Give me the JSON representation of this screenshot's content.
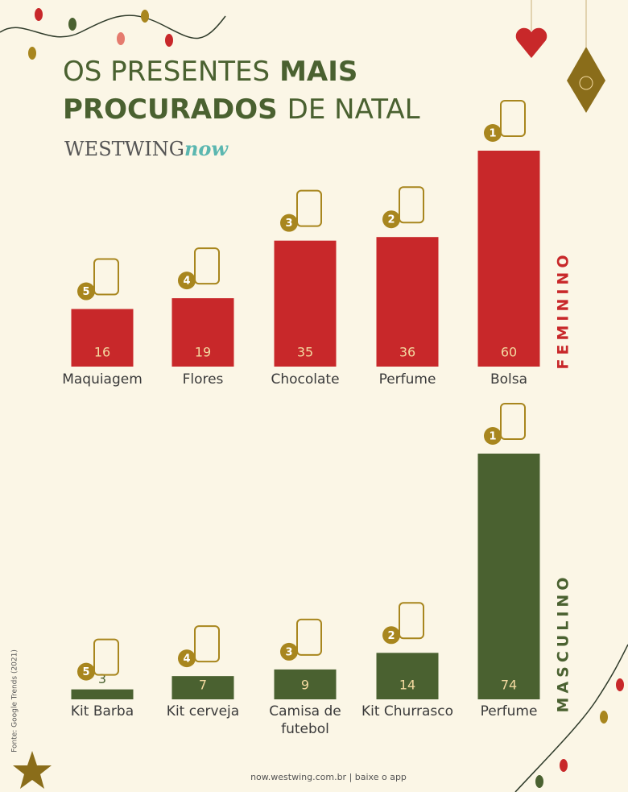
{
  "header": {
    "title_lines": [
      [
        {
          "text": "OS PRESENTES",
          "bold": false
        },
        {
          "text": "MAIS",
          "bold": true
        }
      ],
      [
        {
          "text": "PROCURADOS",
          "bold": true
        },
        {
          "text": "DE NATAL",
          "bold": false
        }
      ]
    ],
    "logo": [
      "WESTWING",
      "now"
    ]
  },
  "chart_data": [
    {
      "type": "bar",
      "label": "FEMININO",
      "categories": [
        "Maquiagem",
        "Flores",
        "Chocolate",
        "Perfume",
        "Bolsa"
      ],
      "values": [
        16,
        19,
        35,
        36,
        60
      ],
      "ranks": [
        5,
        4,
        3,
        2,
        1
      ],
      "color": "#c8282a"
    },
    {
      "type": "bar",
      "label": "MASCULINO",
      "categories": [
        "Kit Barba",
        "Kit cerveja",
        "Camisa de futebol",
        "Kit Churrasco",
        "Perfume"
      ],
      "values": [
        3,
        7,
        9,
        14,
        74
      ],
      "ranks": [
        5,
        4,
        3,
        2,
        1
      ],
      "color": "#4a6130"
    }
  ],
  "footer": {
    "source": "Fonte: Google Trends (2021)",
    "url": "now.westwing.com.br | baixe o app"
  }
}
